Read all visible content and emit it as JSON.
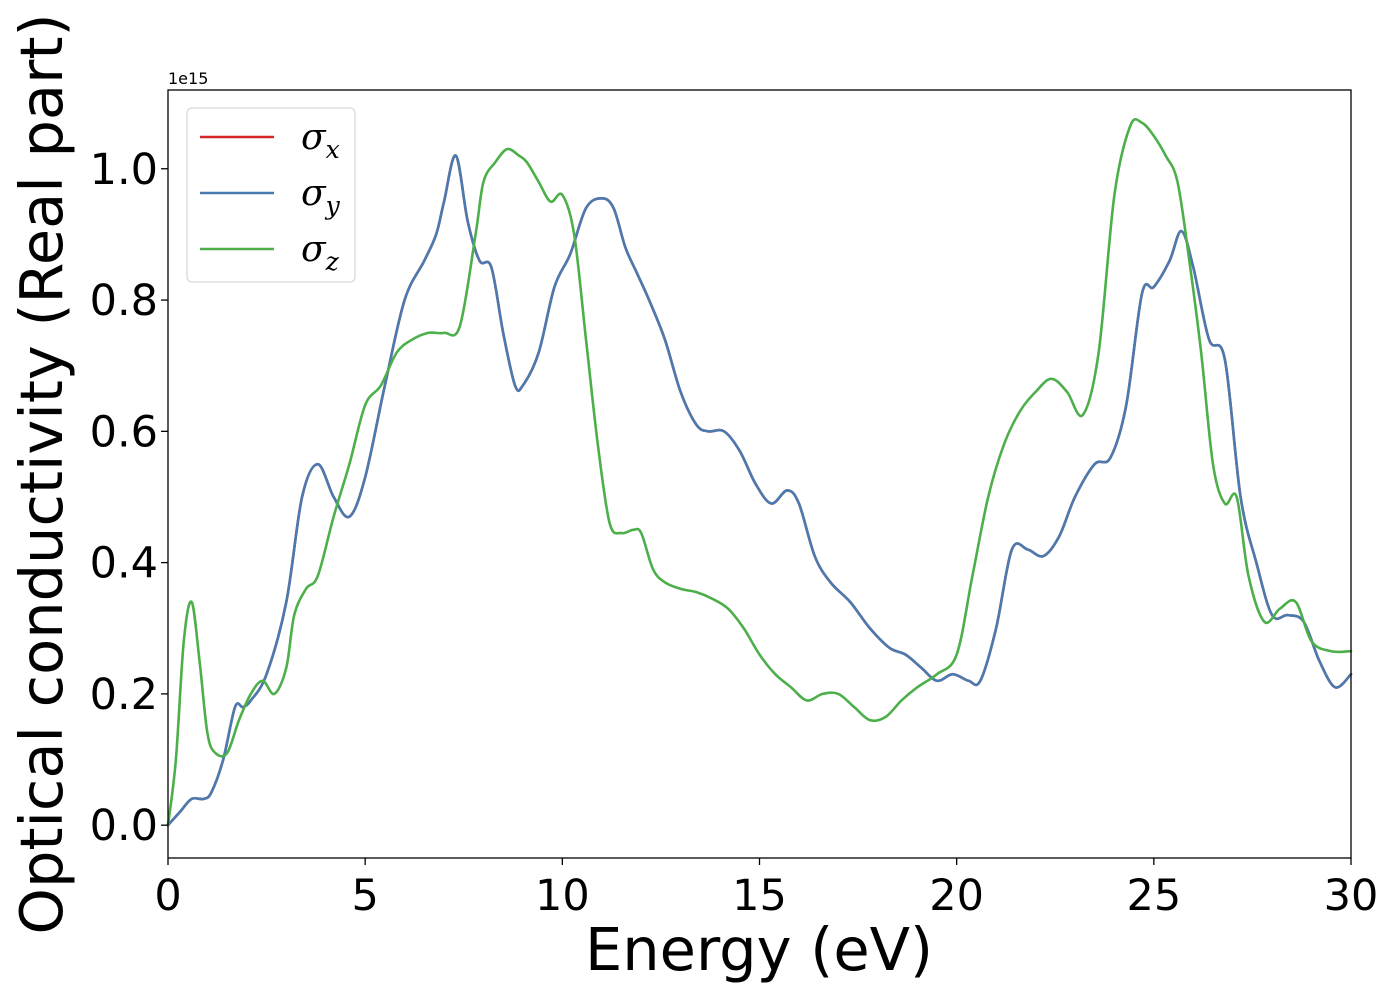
{
  "chart_data": {
    "type": "line",
    "xlabel": "Energy (eV)",
    "ylabel": "Optical conductivity (Real part)",
    "y_offset_label": "1e15",
    "xlim": [
      0,
      30
    ],
    "ylim": [
      -0.05,
      1.12
    ],
    "x_ticks": [
      0,
      5,
      10,
      15,
      20,
      25,
      30
    ],
    "x_tick_labels": [
      "0",
      "5",
      "10",
      "15",
      "20",
      "25",
      "30"
    ],
    "y_ticks": [
      0.0,
      0.2,
      0.4,
      0.6,
      0.8,
      1.0
    ],
    "y_tick_labels": [
      "0.0",
      "0.2",
      "0.4",
      "0.6",
      "0.8",
      "1.0"
    ],
    "grid": false,
    "legend_position": "top-left",
    "series": [
      {
        "name": "σx",
        "symbol": "σ",
        "subscript": "x",
        "color": "#d62728",
        "x": [
          0,
          0.3,
          0.6,
          0.9,
          1.1,
          1.4,
          1.7,
          1.9,
          2.1,
          2.5,
          3.0,
          3.4,
          3.8,
          4.2,
          4.6,
          5.0,
          5.5,
          6.0,
          6.5,
          6.8,
          7.0,
          7.3,
          7.6,
          7.9,
          8.2,
          8.5,
          8.8,
          9.0,
          9.4,
          9.8,
          10.2,
          10.6,
          11.0,
          11.3,
          11.6,
          11.9,
          12.2,
          12.6,
          13.0,
          13.4,
          13.7,
          14.1,
          14.5,
          14.9,
          15.3,
          15.7,
          16.0,
          16.4,
          16.8,
          17.3,
          17.8,
          18.3,
          18.7,
          19.1,
          19.5,
          19.9,
          20.3,
          20.6,
          21.0,
          21.4,
          21.8,
          22.2,
          22.6,
          23.0,
          23.5,
          23.9,
          24.3,
          24.7,
          25.0,
          25.4,
          25.7,
          26.0,
          26.4,
          26.8,
          27.2,
          27.6,
          28.0,
          28.4,
          28.8,
          29.2,
          29.6,
          30.0
        ],
        "y": [
          0.0,
          0.02,
          0.04,
          0.04,
          0.05,
          0.1,
          0.18,
          0.18,
          0.19,
          0.23,
          0.34,
          0.5,
          0.55,
          0.5,
          0.47,
          0.53,
          0.67,
          0.8,
          0.86,
          0.9,
          0.95,
          1.02,
          0.92,
          0.86,
          0.85,
          0.75,
          0.67,
          0.67,
          0.72,
          0.82,
          0.87,
          0.94,
          0.955,
          0.94,
          0.88,
          0.84,
          0.8,
          0.74,
          0.66,
          0.61,
          0.6,
          0.6,
          0.57,
          0.52,
          0.49,
          0.51,
          0.49,
          0.41,
          0.37,
          0.34,
          0.3,
          0.27,
          0.26,
          0.24,
          0.22,
          0.23,
          0.22,
          0.22,
          0.3,
          0.42,
          0.42,
          0.41,
          0.44,
          0.5,
          0.55,
          0.56,
          0.64,
          0.81,
          0.82,
          0.86,
          0.905,
          0.85,
          0.74,
          0.71,
          0.5,
          0.4,
          0.32,
          0.32,
          0.31,
          0.25,
          0.21,
          0.23
        ]
      },
      {
        "name": "σy",
        "symbol": "σ",
        "subscript": "y",
        "color": "#4a7bb0",
        "x": [
          0,
          0.3,
          0.6,
          0.9,
          1.1,
          1.4,
          1.7,
          1.9,
          2.1,
          2.5,
          3.0,
          3.4,
          3.8,
          4.2,
          4.6,
          5.0,
          5.5,
          6.0,
          6.5,
          6.8,
          7.0,
          7.3,
          7.6,
          7.9,
          8.2,
          8.5,
          8.8,
          9.0,
          9.4,
          9.8,
          10.2,
          10.6,
          11.0,
          11.3,
          11.6,
          11.9,
          12.2,
          12.6,
          13.0,
          13.4,
          13.7,
          14.1,
          14.5,
          14.9,
          15.3,
          15.7,
          16.0,
          16.4,
          16.8,
          17.3,
          17.8,
          18.3,
          18.7,
          19.1,
          19.5,
          19.9,
          20.3,
          20.6,
          21.0,
          21.4,
          21.8,
          22.2,
          22.6,
          23.0,
          23.5,
          23.9,
          24.3,
          24.7,
          25.0,
          25.4,
          25.7,
          26.0,
          26.4,
          26.8,
          27.2,
          27.6,
          28.0,
          28.4,
          28.8,
          29.2,
          29.6,
          30.0
        ],
        "y": [
          0.0,
          0.02,
          0.04,
          0.04,
          0.05,
          0.1,
          0.18,
          0.18,
          0.19,
          0.23,
          0.34,
          0.5,
          0.55,
          0.5,
          0.47,
          0.53,
          0.67,
          0.8,
          0.86,
          0.9,
          0.95,
          1.02,
          0.92,
          0.86,
          0.85,
          0.75,
          0.67,
          0.67,
          0.72,
          0.82,
          0.87,
          0.94,
          0.955,
          0.94,
          0.88,
          0.84,
          0.8,
          0.74,
          0.66,
          0.61,
          0.6,
          0.6,
          0.57,
          0.52,
          0.49,
          0.51,
          0.49,
          0.41,
          0.37,
          0.34,
          0.3,
          0.27,
          0.26,
          0.24,
          0.22,
          0.23,
          0.22,
          0.22,
          0.3,
          0.42,
          0.42,
          0.41,
          0.44,
          0.5,
          0.55,
          0.56,
          0.64,
          0.81,
          0.82,
          0.86,
          0.905,
          0.85,
          0.74,
          0.71,
          0.5,
          0.4,
          0.32,
          0.32,
          0.31,
          0.25,
          0.21,
          0.23
        ]
      },
      {
        "name": "σz",
        "symbol": "σ",
        "subscript": "z",
        "color": "#4daf4a",
        "x": [
          0,
          0.2,
          0.4,
          0.6,
          0.8,
          1.0,
          1.2,
          1.5,
          1.8,
          2.1,
          2.4,
          2.7,
          3.0,
          3.2,
          3.5,
          3.8,
          4.2,
          4.6,
          5.0,
          5.4,
          5.8,
          6.2,
          6.6,
          7.0,
          7.4,
          7.8,
          8.0,
          8.3,
          8.6,
          8.9,
          9.1,
          9.4,
          9.7,
          10.0,
          10.3,
          10.6,
          10.9,
          11.2,
          11.5,
          11.8,
          12.0,
          12.3,
          12.6,
          13.0,
          13.4,
          13.8,
          14.2,
          14.6,
          15.0,
          15.4,
          15.8,
          16.2,
          16.6,
          17.0,
          17.4,
          17.8,
          18.2,
          18.6,
          19.0,
          19.5,
          20.0,
          20.4,
          20.8,
          21.2,
          21.6,
          22.0,
          22.4,
          22.8,
          23.2,
          23.6,
          24.0,
          24.4,
          24.7,
          25.0,
          25.3,
          25.6,
          25.9,
          26.2,
          26.5,
          26.8,
          27.1,
          27.4,
          27.8,
          28.2,
          28.6,
          29.0,
          29.5,
          30.0
        ],
        "y": [
          0.0,
          0.1,
          0.28,
          0.34,
          0.25,
          0.14,
          0.11,
          0.11,
          0.16,
          0.2,
          0.22,
          0.2,
          0.24,
          0.32,
          0.36,
          0.38,
          0.47,
          0.55,
          0.64,
          0.67,
          0.72,
          0.74,
          0.75,
          0.75,
          0.76,
          0.9,
          0.98,
          1.01,
          1.03,
          1.02,
          1.01,
          0.98,
          0.95,
          0.96,
          0.9,
          0.74,
          0.58,
          0.46,
          0.445,
          0.45,
          0.445,
          0.39,
          0.37,
          0.36,
          0.355,
          0.345,
          0.33,
          0.3,
          0.26,
          0.23,
          0.21,
          0.19,
          0.2,
          0.2,
          0.18,
          0.16,
          0.165,
          0.19,
          0.21,
          0.23,
          0.26,
          0.38,
          0.5,
          0.58,
          0.63,
          0.66,
          0.68,
          0.66,
          0.625,
          0.72,
          0.96,
          1.065,
          1.07,
          1.05,
          1.02,
          0.98,
          0.86,
          0.72,
          0.55,
          0.49,
          0.5,
          0.38,
          0.31,
          0.33,
          0.34,
          0.28,
          0.265,
          0.265
        ]
      }
    ]
  }
}
